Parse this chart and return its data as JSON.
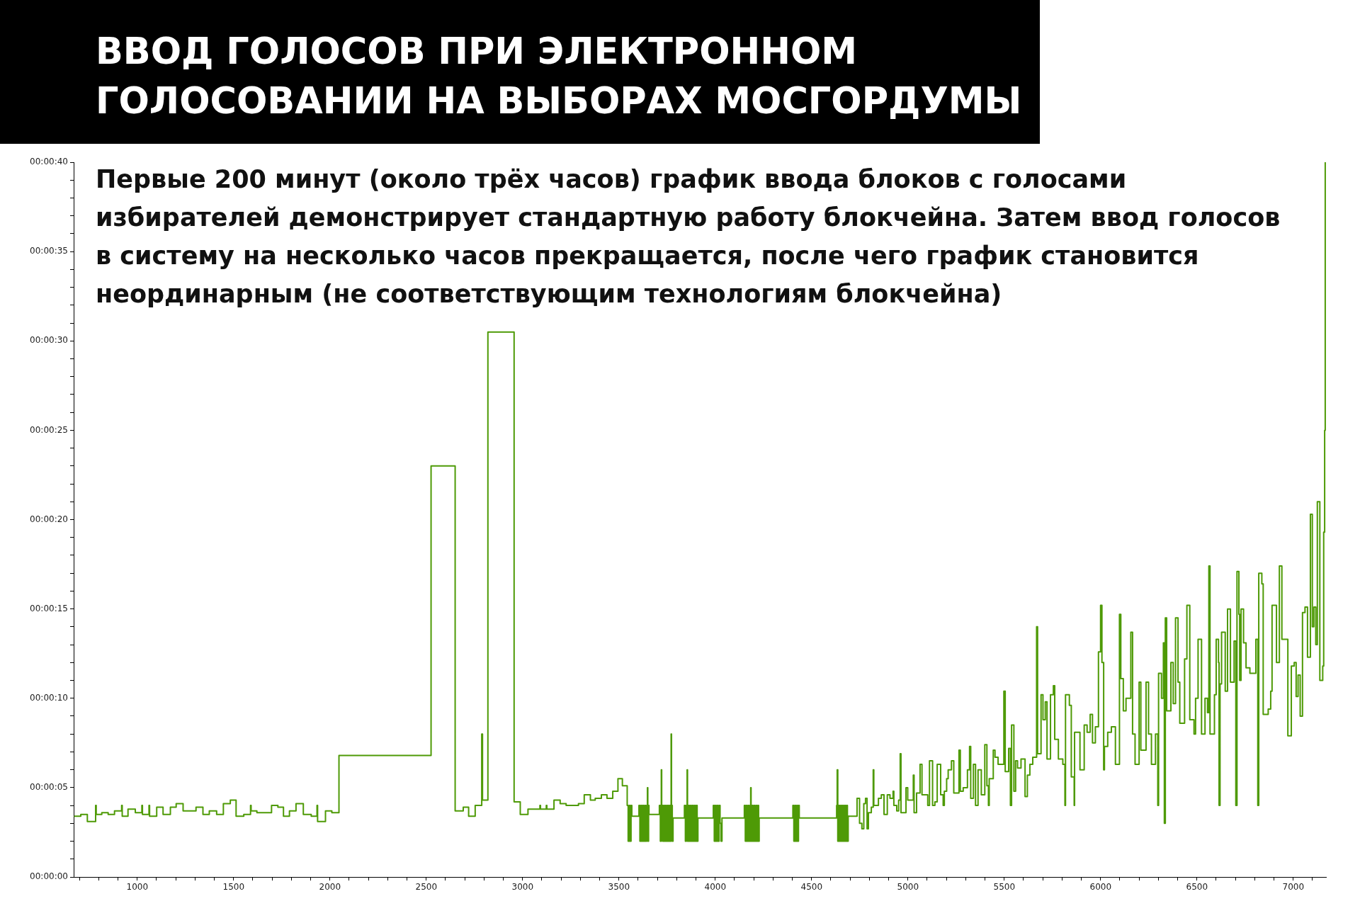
{
  "chart_data": {
    "type": "step",
    "title": "ВВОД ГОЛОСОВ ПРИ ЭЛЕКТРОННОМ ГОЛОСОВАНИИ НА ВЫБОРАХ МОСГОРДУМЫ",
    "annotations": [
      "Первые 200 минут (около трёх часов) график ввода блоков с голосами избирателей демонстрирует стандартную работу блокчейна. Затем ввод голосов в систему на несколько часов прекращается, после чего график становится неординарным (не соответствующим технологиям блокчейна)"
    ],
    "color": "#4e9a06",
    "x": [
      675,
      707,
      741,
      784,
      787,
      816,
      849,
      882,
      919,
      922,
      952,
      990,
      1024,
      1027,
      1061,
      1064,
      1101,
      1134,
      1172,
      1202,
      1238,
      1305,
      1341,
      1374,
      1412,
      1447,
      1483,
      1513,
      1553,
      1588,
      1591,
      1621,
      1697,
      1730,
      1759,
      1790,
      1824,
      1862,
      1903,
      1933,
      1936,
      1977,
      2010,
      2047,
      2525,
      2650,
      2692,
      2720,
      2754,
      2788,
      2792,
      2820,
      2956,
      2988,
      3028,
      3090,
      3093,
      3123,
      3126,
      3163,
      3195,
      3226,
      3290,
      3320,
      3352,
      3377,
      3409,
      3438,
      3468,
      3495,
      3518,
      3543,
      3548,
      3553,
      3558,
      3563,
      3567,
      3604,
      3609,
      3614,
      3619,
      3624,
      3629,
      3634,
      3639,
      3644,
      3648,
      3650,
      3654,
      3656,
      3710,
      3715,
      3720,
      3722,
      3727,
      3732,
      3737,
      3742,
      3747,
      3752,
      3757,
      3762,
      3767,
      3771,
      3773,
      3777,
      3781,
      3840,
      3845,
      3850,
      3854,
      3856,
      3861,
      3866,
      3871,
      3876,
      3881,
      3886,
      3891,
      3896,
      3901,
      3906,
      3910,
      3990,
      3995,
      4000,
      4005,
      4010,
      4015,
      4020,
      4025,
      4030,
      4035,
      4151,
      4156,
      4161,
      4166,
      4171,
      4176,
      4181,
      4184,
      4186,
      4191,
      4196,
      4201,
      4206,
      4211,
      4216,
      4221,
      4225,
      4228,
      4403,
      4408,
      4413,
      4418,
      4423,
      4428,
      4432,
      4436,
      4630,
      4633,
      4636,
      4641,
      4646,
      4651,
      4656,
      4661,
      4666,
      4671,
      4676,
      4681,
      4686,
      4690,
      4736,
      4749,
      4761,
      4771,
      4780,
      4788,
      4795,
      4810,
      4820,
      4823,
      4847,
      4862,
      4876,
      4893,
      4907,
      4923,
      4927,
      4942,
      4952,
      4960,
      4964,
      4990,
      4999,
      5028,
      5032,
      5045,
      5063,
      5073,
      5103,
      5112,
      5128,
      5140,
      5152,
      5170,
      5183,
      5189,
      5201,
      5209,
      5226,
      5238,
      5265,
      5272,
      5287,
      5309,
      5320,
      5326,
      5340,
      5351,
      5364,
      5381,
      5399,
      5410,
      5418,
      5422,
      5443,
      5452,
      5468,
      5498,
      5505,
      5523,
      5532,
      5538,
      5550,
      5559,
      5569,
      5587,
      5608,
      5620,
      5633,
      5648,
      5668,
      5673,
      5691,
      5701,
      5713,
      5722,
      5740,
      5755,
      5762,
      5781,
      5804,
      5815,
      5818,
      5838,
      5848,
      5863,
      5865,
      5893,
      5915,
      5930,
      5946,
      5958,
      5973,
      5989,
      6000,
      6007,
      6016,
      6020,
      6037,
      6056,
      6077,
      6098,
      6105,
      6118,
      6132,
      6157,
      6166,
      6179,
      6200,
      6209,
      6236,
      6249,
      6264,
      6285,
      6297,
      6301,
      6316,
      6326,
      6331,
      6336,
      6343,
      6365,
      6377,
      6389,
      6402,
      6411,
      6436,
      6448,
      6463,
      6485,
      6493,
      6506,
      6524,
      6542,
      6555,
      6562,
      6568,
      6591,
      6600,
      6612,
      6615,
      6620,
      6628,
      6647,
      6659,
      6674,
      6693,
      6702,
      6708,
      6718,
      6722,
      6729,
      6742,
      6755,
      6775,
      6806,
      6816,
      6821,
      6837,
      6844,
      6870,
      6883,
      6890,
      6913,
      6928,
      6941,
      6972,
      6990,
      7005,
      7015,
      7025,
      7036,
      7048,
      7061,
      7074,
      7089,
      7099,
      7107,
      7117,
      7125,
      7138,
      7153,
      7158,
      7163,
      7166
    ],
    "values": [
      3.4,
      3.5,
      3.1,
      4.0,
      3.5,
      3.6,
      3.5,
      3.7,
      4.0,
      3.4,
      3.8,
      3.6,
      4.0,
      3.5,
      4.0,
      3.4,
      3.9,
      3.5,
      3.9,
      4.1,
      3.7,
      3.9,
      3.5,
      3.7,
      3.5,
      4.1,
      4.3,
      3.4,
      3.5,
      4.0,
      3.7,
      3.6,
      4.0,
      3.9,
      3.4,
      3.7,
      4.1,
      3.5,
      3.4,
      4.0,
      3.1,
      3.7,
      3.6,
      6.8,
      23.0,
      3.7,
      3.9,
      3.4,
      4.0,
      8.0,
      4.3,
      30.5,
      4.2,
      3.5,
      3.8,
      4.0,
      3.8,
      4.0,
      3.8,
      4.3,
      4.1,
      4.0,
      4.1,
      4.6,
      4.3,
      4.4,
      4.6,
      4.4,
      4.8,
      5.5,
      5.1,
      4.0,
      2.0,
      4.0,
      2.0,
      4.0,
      3.4,
      4.0,
      2.0,
      4.0,
      2.0,
      4.0,
      2.0,
      4.0,
      2.0,
      4.0,
      5.0,
      2.0,
      4.0,
      3.5,
      4.0,
      2.0,
      6.0,
      4.0,
      2.0,
      4.0,
      2.0,
      4.0,
      2.0,
      4.0,
      2.0,
      4.0,
      2.0,
      8.0,
      4.0,
      2.0,
      3.3,
      4.0,
      2.0,
      4.0,
      6.0,
      2.0,
      4.0,
      2.0,
      4.0,
      2.0,
      4.0,
      2.0,
      4.0,
      2.0,
      4.0,
      2.0,
      3.3,
      4.0,
      2.0,
      4.0,
      2.0,
      4.0,
      2.0,
      4.0,
      3.0,
      2.0,
      3.3,
      4.0,
      2.0,
      4.0,
      2.0,
      4.0,
      2.0,
      4.0,
      5.0,
      2.0,
      4.0,
      2.0,
      4.0,
      2.0,
      4.0,
      2.0,
      4.0,
      2.0,
      3.3,
      4.0,
      2.0,
      4.0,
      2.0,
      4.0,
      2.0,
      4.0,
      3.3,
      4.0,
      6.0,
      2.0,
      4.0,
      2.0,
      4.0,
      2.0,
      4.0,
      2.0,
      4.0,
      2.0,
      4.0,
      2.0,
      3.4,
      4.4,
      3.0,
      2.7,
      4.1,
      4.4,
      2.7,
      3.6,
      3.9,
      6.0,
      4.0,
      4.4,
      4.6,
      3.5,
      4.6,
      4.4,
      4.8,
      4.0,
      3.7,
      4.3,
      6.9,
      3.6,
      5.0,
      4.3,
      5.7,
      3.6,
      4.7,
      6.3,
      4.6,
      4.0,
      6.5,
      4.0,
      4.2,
      6.3,
      4.6,
      4.0,
      4.8,
      5.5,
      6.0,
      6.5,
      4.7,
      7.1,
      4.8,
      5.0,
      6.0,
      7.3,
      4.4,
      6.3,
      4.0,
      6.0,
      4.6,
      7.4,
      5.1,
      4.0,
      5.5,
      7.1,
      6.7,
      6.3,
      10.4,
      5.9,
      7.2,
      4.0,
      8.5,
      4.8,
      6.5,
      6.1,
      6.6,
      4.5,
      5.7,
      6.3,
      6.7,
      14.0,
      6.9,
      10.2,
      8.8,
      9.8,
      6.6,
      10.2,
      10.7,
      7.7,
      6.6,
      6.3,
      4.0,
      10.2,
      9.6,
      5.6,
      4.0,
      8.1,
      6.0,
      8.5,
      8.1,
      9.1,
      7.5,
      8.4,
      12.6,
      15.2,
      12.0,
      6.0,
      7.3,
      8.1,
      8.4,
      6.3,
      14.7,
      11.1,
      9.3,
      10.0,
      13.7,
      8.0,
      6.3,
      10.9,
      7.1,
      10.9,
      8.0,
      6.3,
      8.0,
      4.0,
      11.4,
      10.0,
      13.1,
      3.0,
      14.5,
      9.3,
      12.0,
      9.7,
      14.5,
      10.9,
      8.6,
      12.2,
      15.2,
      8.8,
      8.0,
      10.0,
      13.3,
      8.0,
      10.0,
      9.2,
      17.4,
      8.0,
      10.2,
      13.3,
      12.0,
      4.0,
      10.8,
      13.7,
      10.4,
      15.0,
      10.9,
      13.2,
      4.0,
      17.1,
      14.7,
      11.0,
      15.0,
      13.1,
      11.7,
      11.4,
      13.3,
      4.0,
      17.0,
      16.4,
      9.1,
      9.4,
      10.4,
      15.2,
      12.0,
      17.4,
      13.3,
      7.9,
      11.8,
      12.0,
      10.1,
      11.3,
      9.0,
      14.8,
      15.1,
      12.3,
      20.3,
      14.0,
      15.1,
      13.0,
      21.0,
      11.0,
      11.8,
      19.3,
      25.0,
      40.0
    ],
    "xlim": [
      670,
      7170
    ],
    "xticks": [
      {
        "value": 700,
        "label": null
      },
      {
        "value": 800,
        "label": null
      },
      {
        "value": 900,
        "label": null
      },
      1000,
      {
        "value": 1100,
        "label": null
      },
      {
        "value": 1200,
        "label": null
      },
      {
        "value": 1300,
        "label": null
      },
      {
        "value": 1400,
        "label": null
      },
      1500,
      {
        "value": 1600,
        "label": null
      },
      {
        "value": 1700,
        "label": null
      },
      {
        "value": 1800,
        "label": null
      },
      {
        "value": 1900,
        "label": null
      },
      2000,
      {
        "value": 2100,
        "label": null
      },
      {
        "value": 2200,
        "label": null
      },
      {
        "value": 2300,
        "label": null
      },
      {
        "value": 2400,
        "label": null
      },
      2500,
      {
        "value": 2600,
        "label": null
      },
      {
        "value": 2700,
        "label": null
      },
      {
        "value": 2800,
        "label": null
      },
      {
        "value": 2900,
        "label": null
      },
      3000,
      {
        "value": 3100,
        "label": null
      },
      {
        "value": 3200,
        "label": null
      },
      {
        "value": 3300,
        "label": null
      },
      {
        "value": 3400,
        "label": null
      },
      3500,
      {
        "value": 3600,
        "label": null
      },
      {
        "value": 3700,
        "label": null
      },
      {
        "value": 3800,
        "label": null
      },
      {
        "value": 3900,
        "label": null
      },
      4000,
      {
        "value": 4100,
        "label": null
      },
      {
        "value": 4200,
        "label": null
      },
      {
        "value": 4300,
        "label": null
      },
      {
        "value": 4400,
        "label": null
      },
      4500,
      {
        "value": 4600,
        "label": null
      },
      {
        "value": 4700,
        "label": null
      },
      {
        "value": 4800,
        "label": null
      },
      {
        "value": 4900,
        "label": null
      },
      5000,
      {
        "value": 5100,
        "label": null
      },
      {
        "value": 5200,
        "label": null
      },
      {
        "value": 5300,
        "label": null
      },
      {
        "value": 5400,
        "label": null
      },
      5500,
      {
        "value": 5600,
        "label": null
      },
      {
        "value": 5700,
        "label": null
      },
      {
        "value": 5800,
        "label": null
      },
      {
        "value": 5900,
        "label": null
      },
      6000,
      {
        "value": 6100,
        "label": null
      },
      {
        "value": 6200,
        "label": null
      },
      {
        "value": 6300,
        "label": null
      },
      {
        "value": 6400,
        "label": null
      },
      6500,
      {
        "value": 6600,
        "label": null
      },
      {
        "value": 6700,
        "label": null
      },
      {
        "value": 6800,
        "label": null
      },
      {
        "value": 6900,
        "label": null
      },
      7000,
      {
        "value": 7100,
        "label": null
      }
    ],
    "ylim": [
      0,
      40
    ],
    "yticks": [
      {
        "value": 0,
        "label": "00:00:00"
      },
      {
        "value": 1,
        "label": null
      },
      {
        "value": 2,
        "label": null
      },
      {
        "value": 3,
        "label": null
      },
      {
        "value": 4,
        "label": null
      },
      {
        "value": 5,
        "label": "00:00:05"
      },
      {
        "value": 6,
        "label": null
      },
      {
        "value": 7,
        "label": null
      },
      {
        "value": 8,
        "label": null
      },
      {
        "value": 9,
        "label": null
      },
      {
        "value": 10,
        "label": "00:00:10"
      },
      {
        "value": 11,
        "label": null
      },
      {
        "value": 12,
        "label": null
      },
      {
        "value": 13,
        "label": null
      },
      {
        "value": 14,
        "label": null
      },
      {
        "value": 15,
        "label": "00:00:15"
      },
      {
        "value": 16,
        "label": null
      },
      {
        "value": 17,
        "label": null
      },
      {
        "value": 18,
        "label": null
      },
      {
        "value": 19,
        "label": null
      },
      {
        "value": 20,
        "label": "00:00:20"
      },
      {
        "value": 21,
        "label": null
      },
      {
        "value": 22,
        "label": null
      },
      {
        "value": 23,
        "label": null
      },
      {
        "value": 24,
        "label": null
      },
      {
        "value": 25,
        "label": "00:00:25"
      },
      {
        "value": 26,
        "label": null
      },
      {
        "value": 27,
        "label": null
      },
      {
        "value": 28,
        "label": null
      },
      {
        "value": 29,
        "label": null
      },
      {
        "value": 30,
        "label": "00:00:30"
      },
      {
        "value": 31,
        "label": null
      },
      {
        "value": 32,
        "label": null
      },
      {
        "value": 33,
        "label": null
      },
      {
        "value": 34,
        "label": null
      },
      {
        "value": 35,
        "label": "00:00:35"
      },
      {
        "value": 36,
        "label": null
      },
      {
        "value": 37,
        "label": null
      },
      {
        "value": 38,
        "label": null
      },
      {
        "value": 39,
        "label": null
      },
      {
        "value": 40,
        "label": "00:00:40"
      }
    ]
  }
}
